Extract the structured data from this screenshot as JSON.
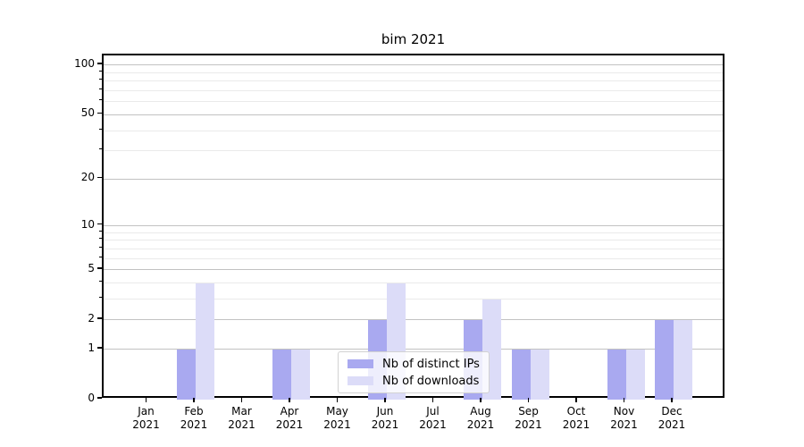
{
  "chart_data": {
    "type": "bar",
    "title": "bim 2021",
    "categories": [
      "Jan",
      "Feb",
      "Mar",
      "Apr",
      "May",
      "Jun",
      "Jul",
      "Aug",
      "Sep",
      "Oct",
      "Nov",
      "Dec"
    ],
    "year_label": "2021",
    "series": [
      {
        "name": "Nb of distinct IPs",
        "color": "#a9a9f0",
        "values": [
          0,
          1,
          0,
          1,
          0,
          2,
          0,
          2,
          1,
          0,
          1,
          2
        ]
      },
      {
        "name": "Nb of downloads",
        "color": "#dcdcf8",
        "values": [
          0,
          4,
          0,
          1,
          0,
          4,
          0,
          3,
          1,
          0,
          1,
          2
        ]
      }
    ],
    "xlabel": "",
    "ylabel": "",
    "y_axis": {
      "scale": "log1p",
      "ylim": [
        0,
        115
      ],
      "major_ticks": [
        0,
        1,
        2,
        5,
        10,
        20,
        50,
        100
      ],
      "minor_ticks": [
        3,
        4,
        6,
        7,
        8,
        9,
        30,
        40,
        60,
        70,
        80,
        90
      ]
    },
    "grid": true,
    "legend_position": "lower-center"
  },
  "colors": {
    "major_grid": "#c2c2c2",
    "minor_grid": "#eaeaea",
    "axis_spine": "#000000",
    "background": "#ffffff"
  }
}
